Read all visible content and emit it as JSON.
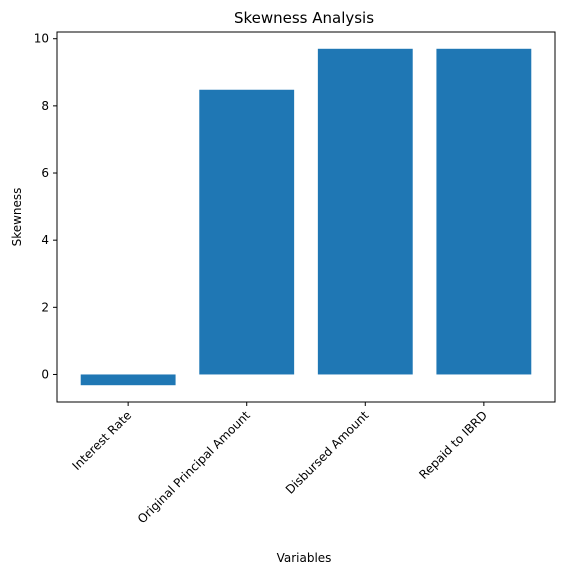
{
  "chart_data": {
    "type": "bar",
    "title": "Skewness Analysis",
    "xlabel": "Variables",
    "ylabel": "Skewness",
    "categories": [
      "Interest Rate",
      "Original Principal Amount",
      "Disbursed Amount",
      "Repaid to IBRD"
    ],
    "values": [
      -0.32,
      8.48,
      9.7,
      9.7
    ],
    "ylim": [
      -0.82,
      10.2
    ],
    "yticks": [
      0,
      2,
      4,
      6,
      8,
      10
    ],
    "ytick_labels": [
      "0",
      "2",
      "4",
      "6",
      "8",
      "10"
    ],
    "bar_color": "#1f77b4",
    "grid": false,
    "legend": "none"
  }
}
